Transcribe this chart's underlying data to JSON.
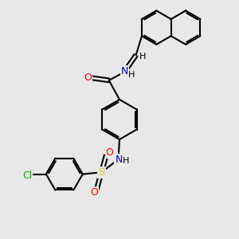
{
  "background_color": "#e8e8e8",
  "bond_color": "#000000",
  "n_color": "#0000cc",
  "o_color": "#ff0000",
  "s_color": "#cccc00",
  "cl_color": "#00aa00",
  "bond_lw": 1.5,
  "dbo": 0.08,
  "figsize": [
    3.0,
    3.0
  ],
  "dpi": 100,
  "xlim": [
    0,
    10
  ],
  "ylim": [
    0,
    10
  ]
}
